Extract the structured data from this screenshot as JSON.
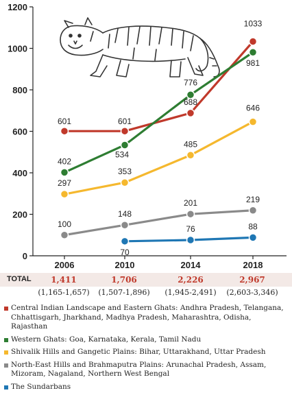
{
  "chart_data": {
    "type": "line",
    "x": [
      "2006",
      "2010",
      "2014",
      "2018"
    ],
    "ylim": [
      0,
      1200
    ],
    "yticks": [
      0,
      200,
      400,
      600,
      800,
      1000,
      1200
    ],
    "grid": false,
    "series": [
      {
        "name": "Central Indian Landscape and Eastern Ghats: Andhra Pradesh, Telangana, Chhattisgarh, Jharkhand, Madhya Pradesh, Maharashtra, Odisha, Rajasthan",
        "color": "#c0392b",
        "values": [
          601,
          601,
          688,
          1033
        ],
        "labels": [
          "601",
          "601",
          "688",
          "1033"
        ]
      },
      {
        "name": "Western Ghats: Goa, Karnataka, Kerala, Tamil Nadu",
        "color": "#2e7d32",
        "values": [
          402,
          534,
          776,
          981
        ],
        "labels": [
          "402",
          "534",
          "776",
          "981"
        ]
      },
      {
        "name": "Shivalik Hills and Gangetic Plains: Bihar, Uttarakhand, Uttar Pradesh",
        "color": "#f5b82e",
        "values": [
          297,
          353,
          485,
          646
        ],
        "labels": [
          "297",
          "353",
          "485",
          "646"
        ]
      },
      {
        "name": "North-East Hills and Brahmaputra Plains: Arunachal Pradesh, Assam, Mizoram, Nagaland, Northern West Bengal",
        "color": "#8a8a8a",
        "values": [
          100,
          148,
          201,
          219
        ],
        "labels": [
          "100",
          "148",
          "201",
          "219"
        ]
      },
      {
        "name": "The Sundarbans",
        "color": "#1f77b4",
        "values": [
          null,
          70,
          76,
          88
        ],
        "labels": [
          null,
          "70",
          "76",
          "88"
        ]
      }
    ]
  },
  "totals": {
    "label": "TOTAL",
    "values": [
      "1,411",
      "1,706",
      "2,226",
      "2,967"
    ],
    "ranges": [
      "(1,165-1,657)",
      "(1,507-1,896)",
      "(1,945-2,491)",
      "(2,603-3,346)"
    ]
  },
  "illustration": {
    "icon": "tiger-icon"
  }
}
